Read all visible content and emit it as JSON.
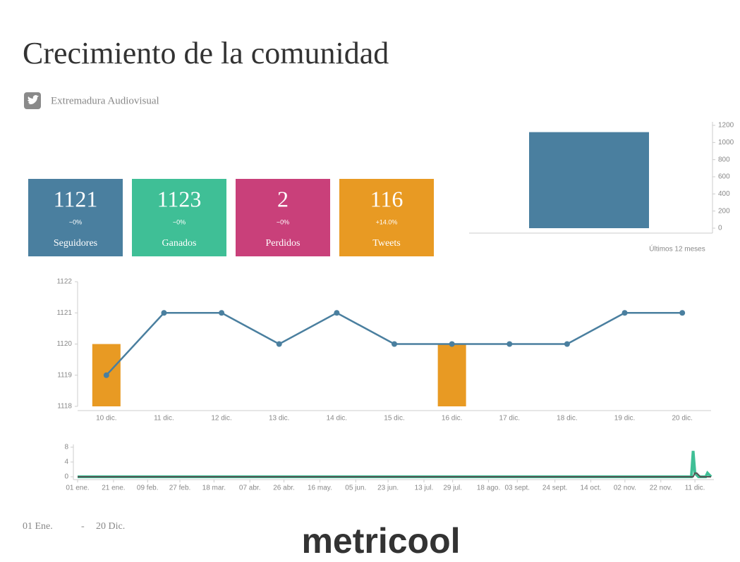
{
  "title": "Crecimiento de la comunidad",
  "account": "Extremadura Audiovisual",
  "kpis": [
    {
      "value": 1121,
      "change": "~0%",
      "label": "Seguidores",
      "color": "#4a7f9f"
    },
    {
      "value": 1123,
      "change": "~0%",
      "label": "Ganados",
      "color": "#3fbf96"
    },
    {
      "value": 2,
      "change": "~0%",
      "label": "Perdidos",
      "color": "#c9407a"
    },
    {
      "value": 116,
      "change": "+14.0%",
      "label": "Tweets",
      "color": "#e89a23"
    }
  ],
  "footer": {
    "start": "01 Ene.",
    "separator": "-",
    "end": "20 Dic.",
    "logo": "metricool"
  },
  "chart_data": [
    {
      "type": "bar",
      "categories": [
        null
      ],
      "values": [
        1121
      ],
      "color": "#4a7f9f",
      "ylim": [
        0,
        1200
      ],
      "yticks": [
        0,
        200,
        400,
        600,
        800,
        1000,
        1200
      ],
      "xlabel": "Últimos 12 meses"
    },
    {
      "type": "combo",
      "categories": [
        "10 dic.",
        "11 dic.",
        "12 dic.",
        "13 dic.",
        "14 dic.",
        "15 dic.",
        "16 dic.",
        "17 dic.",
        "18 dic.",
        "19 dic.",
        "20 dic."
      ],
      "series": [
        {
          "type": "bar",
          "color": "#e89a23",
          "values": [
            1120,
            null,
            null,
            null,
            null,
            null,
            1120,
            null,
            null,
            null,
            null
          ]
        },
        {
          "type": "line",
          "color": "#4a7f9f",
          "values": [
            1119,
            1121,
            1121,
            1120,
            1121,
            1120,
            1120,
            1120,
            1120,
            1121,
            1121
          ]
        }
      ],
      "ylim": [
        1118,
        1122
      ],
      "yticks": [
        1118,
        1119,
        1120,
        1121,
        1122
      ]
    },
    {
      "type": "line",
      "xlim": [
        0,
        353
      ],
      "xticks": [
        {
          "value": 0,
          "label": "01 ene."
        },
        {
          "value": 20,
          "label": "21 ene."
        },
        {
          "value": 39,
          "label": "09 feb."
        },
        {
          "value": 57,
          "label": "27 feb."
        },
        {
          "value": 76,
          "label": "18 mar."
        },
        {
          "value": 96,
          "label": "07 abr."
        },
        {
          "value": 115,
          "label": "26 abr."
        },
        {
          "value": 135,
          "label": "16 may."
        },
        {
          "value": 155,
          "label": "05 jun."
        },
        {
          "value": 173,
          "label": "23 jun."
        },
        {
          "value": 193,
          "label": "13 jul."
        },
        {
          "value": 209,
          "label": "29 jul."
        },
        {
          "value": 229,
          "label": "18 ago."
        },
        {
          "value": 245,
          "label": "03 sept."
        },
        {
          "value": 266,
          "label": "24 sept."
        },
        {
          "value": 286,
          "label": "14 oct."
        },
        {
          "value": 305,
          "label": "02 nov."
        },
        {
          "value": 325,
          "label": "22 nov."
        },
        {
          "value": 344,
          "label": "11 dic."
        }
      ],
      "ylim": [
        0,
        8
      ],
      "yticks": [
        0,
        4,
        8
      ],
      "series": [
        {
          "color": "#3fbf96",
          "x": [
            0,
            342,
            343,
            344,
            346,
            350,
            351,
            353
          ],
          "values": [
            0,
            0,
            7,
            1,
            0,
            0,
            1,
            0
          ]
        },
        {
          "color": "#555555",
          "x": [
            0,
            343,
            344,
            345,
            347,
            353
          ],
          "values": [
            0,
            0,
            1,
            1,
            0,
            0
          ]
        }
      ]
    }
  ]
}
